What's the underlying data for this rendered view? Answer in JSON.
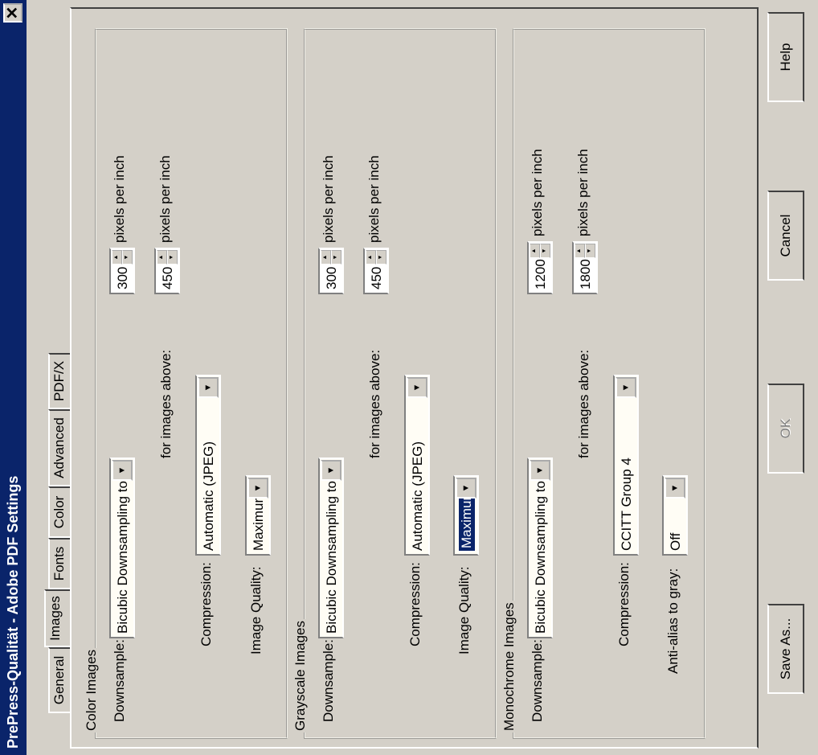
{
  "window": {
    "title": "PrePress-Qualität - Adobe PDF Settings",
    "close_label": "✕"
  },
  "tabs": [
    {
      "label": "General"
    },
    {
      "label": "Images"
    },
    {
      "label": "Fonts"
    },
    {
      "label": "Color"
    },
    {
      "label": "Advanced"
    },
    {
      "label": "PDF/X"
    }
  ],
  "color_images": {
    "title": "Color Images",
    "downsample_label": "Downsample:",
    "downsample_value": "Bicubic Downsampling to",
    "resolution_value": "300",
    "resolution_unit": "pixels per inch",
    "above_label": "for images above:",
    "above_value": "450",
    "above_unit": "pixels per inch",
    "compression_label": "Compression:",
    "compression_value": "Automatic (JPEG)",
    "quality_label": "Image Quality:",
    "quality_value": "Maximum"
  },
  "grayscale_images": {
    "title": "Grayscale Images",
    "downsample_label": "Downsample:",
    "downsample_value": "Bicubic Downsampling to",
    "resolution_value": "300",
    "resolution_unit": "pixels per inch",
    "above_label": "for images above:",
    "above_value": "450",
    "above_unit": "pixels per inch",
    "compression_label": "Compression:",
    "compression_value": "Automatic (JPEG)",
    "quality_label": "Image Quality:",
    "quality_value": "Maximum"
  },
  "monochrome_images": {
    "title": "Monochrome Images",
    "downsample_label": "Downsample:",
    "downsample_value": "Bicubic Downsampling to",
    "resolution_value": "1200",
    "resolution_unit": "pixels per inch",
    "above_label": "for images above:",
    "above_value": "1800",
    "above_unit": "pixels per inch",
    "compression_label": "Compression:",
    "compression_value": "CCITT Group 4",
    "antialias_label": "Anti-alias to gray:",
    "antialias_value": "Off"
  },
  "buttons": {
    "save_as": "Save As...",
    "ok": "OK",
    "cancel": "Cancel",
    "help": "Help"
  },
  "colors": {
    "titlebar": "#0a246a",
    "face": "#d4d0c8",
    "field": "#fffdf5",
    "selection": "#0a246a"
  }
}
